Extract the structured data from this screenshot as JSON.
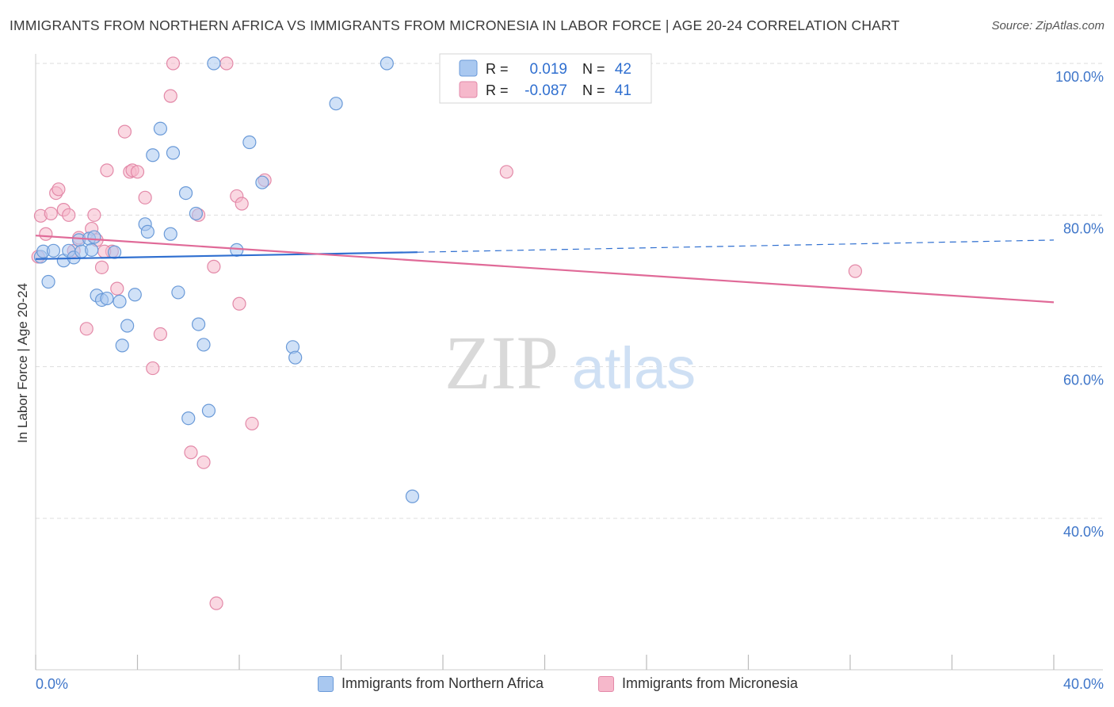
{
  "header": {
    "title": "IMMIGRANTS FROM NORTHERN AFRICA VS IMMIGRANTS FROM MICRONESIA IN LABOR FORCE | AGE 20-24 CORRELATION CHART",
    "source": "Source: ZipAtlas.com"
  },
  "watermark": {
    "zip": "ZIP",
    "atlas": "atlas"
  },
  "colors": {
    "blue_fill": "#a9c8f0",
    "blue_stroke": "#6a9ad8",
    "blue_line": "#2f6fd0",
    "pink_fill": "#f6b8cb",
    "pink_stroke": "#e389a8",
    "pink_line": "#e06a98",
    "axis_text": "#3f76c9",
    "grid": "#dddddd"
  },
  "legend": {
    "rows": [
      {
        "r_label": "R =",
        "r_value": "0.019",
        "n_label": "N =",
        "n_value": "42"
      },
      {
        "r_label": "R =",
        "r_value": "-0.087",
        "n_label": "N =",
        "n_value": "41"
      }
    ]
  },
  "chart_data": {
    "type": "scatter",
    "title": "IMMIGRANTS FROM NORTHERN AFRICA VS IMMIGRANTS FROM MICRONESIA IN LABOR FORCE | AGE 20-24 CORRELATION CHART",
    "xlabel": "",
    "ylabel": "In Labor Force | Age 20-24",
    "xlim": [
      0,
      40
    ],
    "ylim": [
      20,
      102
    ],
    "x_tick_labels": [
      "0.0%",
      "40.0%"
    ],
    "y_ticks": [
      40,
      60,
      80,
      100
    ],
    "y_tick_labels": [
      "40.0%",
      "60.0%",
      "80.0%",
      "100.0%"
    ],
    "series": [
      {
        "name": "Immigrants from Northern Africa",
        "color": "blue",
        "r": 0.019,
        "n": 42,
        "trend": {
          "x": [
            0,
            15
          ],
          "y": [
            74.2,
            75.1
          ],
          "dashed_to_x": 40,
          "dashed_to_y": 76.7
        },
        "points": [
          [
            0.2,
            74.5
          ],
          [
            0.3,
            75.2
          ],
          [
            0.5,
            71.2
          ],
          [
            0.7,
            75.3
          ],
          [
            1.1,
            74.0
          ],
          [
            1.3,
            75.3
          ],
          [
            1.5,
            74.4
          ],
          [
            1.7,
            76.7
          ],
          [
            1.8,
            75.2
          ],
          [
            2.1,
            76.9
          ],
          [
            2.2,
            75.4
          ],
          [
            2.3,
            77.1
          ],
          [
            2.4,
            69.4
          ],
          [
            2.6,
            68.8
          ],
          [
            2.8,
            69.0
          ],
          [
            3.1,
            75.1
          ],
          [
            3.3,
            68.6
          ],
          [
            3.4,
            62.8
          ],
          [
            3.6,
            65.4
          ],
          [
            3.9,
            69.5
          ],
          [
            4.3,
            78.8
          ],
          [
            4.4,
            77.8
          ],
          [
            4.6,
            87.9
          ],
          [
            4.9,
            91.4
          ],
          [
            5.3,
            77.5
          ],
          [
            5.4,
            88.2
          ],
          [
            5.6,
            69.8
          ],
          [
            5.9,
            82.9
          ],
          [
            6.0,
            53.2
          ],
          [
            6.3,
            80.2
          ],
          [
            6.4,
            65.6
          ],
          [
            6.6,
            62.9
          ],
          [
            6.8,
            54.2
          ],
          [
            7.0,
            100.0
          ],
          [
            7.9,
            75.4
          ],
          [
            8.4,
            89.6
          ],
          [
            8.9,
            84.3
          ],
          [
            10.1,
            62.6
          ],
          [
            10.2,
            61.2
          ],
          [
            11.8,
            94.7
          ],
          [
            13.8,
            100.0
          ],
          [
            14.8,
            42.9
          ]
        ]
      },
      {
        "name": "Immigrants from Micronesia",
        "color": "pink",
        "r": -0.087,
        "n": 41,
        "trend": {
          "x": [
            0,
            40
          ],
          "y": [
            77.3,
            68.5
          ]
        },
        "points": [
          [
            0.1,
            74.5
          ],
          [
            0.2,
            79.9
          ],
          [
            0.4,
            77.5
          ],
          [
            0.6,
            80.2
          ],
          [
            0.8,
            82.9
          ],
          [
            0.9,
            83.4
          ],
          [
            1.1,
            80.7
          ],
          [
            1.3,
            80.0
          ],
          [
            1.5,
            75.3
          ],
          [
            1.7,
            77.0
          ],
          [
            2.0,
            65.0
          ],
          [
            2.2,
            78.2
          ],
          [
            2.3,
            80.0
          ],
          [
            2.4,
            76.7
          ],
          [
            2.6,
            73.1
          ],
          [
            2.8,
            85.9
          ],
          [
            3.0,
            75.2
          ],
          [
            3.2,
            70.3
          ],
          [
            3.5,
            91.0
          ],
          [
            3.7,
            85.7
          ],
          [
            3.8,
            85.9
          ],
          [
            4.0,
            85.7
          ],
          [
            4.3,
            82.3
          ],
          [
            4.6,
            59.8
          ],
          [
            4.9,
            64.3
          ],
          [
            5.3,
            95.7
          ],
          [
            5.4,
            100.0
          ],
          [
            6.1,
            48.7
          ],
          [
            6.4,
            80.0
          ],
          [
            6.6,
            47.4
          ],
          [
            7.0,
            73.2
          ],
          [
            7.1,
            28.8
          ],
          [
            7.5,
            100.0
          ],
          [
            7.9,
            82.5
          ],
          [
            8.0,
            68.3
          ],
          [
            8.1,
            81.5
          ],
          [
            8.5,
            52.5
          ],
          [
            9.0,
            84.6
          ],
          [
            18.5,
            85.7
          ],
          [
            32.2,
            72.6
          ],
          [
            2.7,
            75.2
          ]
        ]
      }
    ]
  },
  "bottom_legend": {
    "items": [
      "Immigrants from Northern Africa",
      "Immigrants from Micronesia"
    ]
  }
}
